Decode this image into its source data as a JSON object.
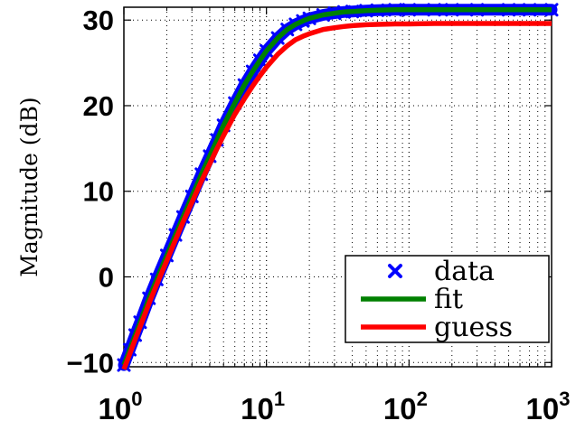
{
  "chart_data": {
    "type": "line",
    "title": "",
    "xlabel": "",
    "ylabel": "Magnitude (dB)",
    "xscale": "log",
    "xlim": [
      1,
      1000
    ],
    "ylim": [
      -10.5,
      31.5
    ],
    "grid": true,
    "x_ticks": [
      {
        "value": 1,
        "base": "10",
        "exp": "0"
      },
      {
        "value": 10,
        "base": "10",
        "exp": "1"
      },
      {
        "value": 100,
        "base": "10",
        "exp": "2"
      },
      {
        "value": 1000,
        "base": "10",
        "exp": "3"
      }
    ],
    "y_ticks": [
      {
        "value": -10,
        "label": "−10"
      },
      {
        "value": 0,
        "label": "0"
      },
      {
        "value": 10,
        "label": "10"
      },
      {
        "value": 20,
        "label": "20"
      },
      {
        "value": 30,
        "label": "30"
      }
    ],
    "legend_position": "bottom-right",
    "series": [
      {
        "name": "data",
        "style": "markers",
        "marker": "x",
        "color": "#0000ff",
        "x": [
          1.0,
          1.1,
          1.2,
          1.3,
          1.5,
          1.7,
          2.0,
          2.3,
          2.6,
          3.0,
          3.5,
          4.0,
          4.5,
          5.0,
          6.0,
          7.0,
          8.0,
          9.0,
          10,
          12,
          14,
          16,
          18,
          20,
          25,
          30,
          35,
          40,
          50,
          60,
          80,
          100,
          150,
          200,
          300,
          500,
          700,
          1000
        ],
        "y": [
          -10.3,
          -8.5,
          -6.8,
          -5.3,
          -2.5,
          -0.3,
          2.5,
          4.9,
          7.0,
          9.4,
          12.0,
          14.1,
          16.0,
          17.7,
          20.3,
          22.4,
          24.0,
          25.3,
          26.4,
          27.9,
          28.9,
          29.5,
          29.9,
          30.2,
          30.6,
          30.8,
          30.95,
          31.0,
          31.1,
          31.15,
          31.2,
          31.2,
          31.2,
          31.2,
          31.2,
          31.2,
          31.2,
          31.2
        ]
      },
      {
        "name": "fit",
        "style": "line",
        "color": "#008000",
        "x": [
          1.0,
          1.1,
          1.2,
          1.3,
          1.5,
          1.7,
          2.0,
          2.3,
          2.6,
          3.0,
          3.5,
          4.0,
          4.5,
          5.0,
          6.0,
          7.0,
          8.0,
          9.0,
          10,
          12,
          14,
          16,
          18,
          20,
          25,
          30,
          35,
          40,
          50,
          60,
          80,
          100,
          150,
          200,
          300,
          500,
          700,
          1000
        ],
        "y": [
          -10.3,
          -8.5,
          -6.8,
          -5.3,
          -2.5,
          -0.3,
          2.5,
          4.9,
          7.0,
          9.4,
          12.0,
          14.1,
          16.0,
          17.7,
          20.3,
          22.4,
          24.0,
          25.3,
          26.4,
          27.9,
          28.9,
          29.5,
          29.9,
          30.2,
          30.6,
          30.8,
          30.95,
          31.0,
          31.1,
          31.15,
          31.2,
          31.2,
          31.2,
          31.2,
          31.2,
          31.2,
          31.2,
          31.2
        ]
      },
      {
        "name": "guess",
        "style": "line",
        "color": "#ff0000",
        "x": [
          1.0,
          1.1,
          1.2,
          1.3,
          1.5,
          1.7,
          2.0,
          2.3,
          2.6,
          3.0,
          3.5,
          4.0,
          4.5,
          5.0,
          6.0,
          7.0,
          8.0,
          9.0,
          10,
          12,
          14,
          16,
          18,
          20,
          25,
          30,
          35,
          40,
          50,
          60,
          80,
          100,
          150,
          200,
          300,
          500,
          700,
          1000
        ],
        "y": [
          -10.8,
          -9.0,
          -7.3,
          -5.8,
          -3.1,
          -0.9,
          1.9,
          4.3,
          6.4,
          8.7,
          11.2,
          13.2,
          15.0,
          16.5,
          19.0,
          20.8,
          22.3,
          23.5,
          24.5,
          26.0,
          27.0,
          27.7,
          28.1,
          28.4,
          28.9,
          29.1,
          29.25,
          29.35,
          29.45,
          29.5,
          29.55,
          29.55,
          29.6,
          29.6,
          29.6,
          29.6,
          29.6,
          29.6
        ]
      }
    ]
  }
}
